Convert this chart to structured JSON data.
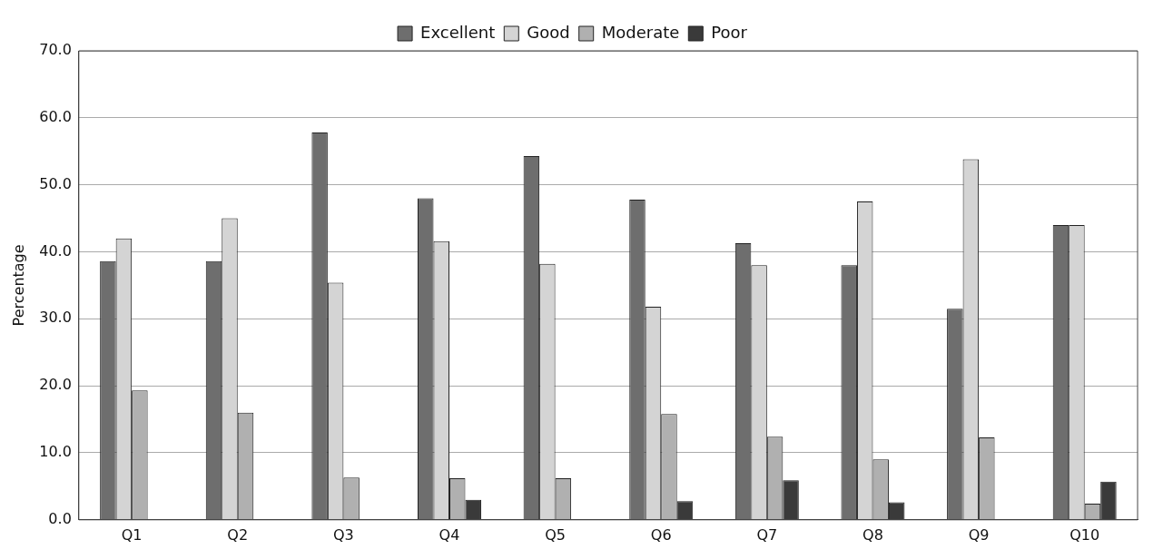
{
  "chart_data": {
    "type": "bar",
    "ylabel": "Percentage",
    "categories": [
      "Q1",
      "Q2",
      "Q3",
      "Q4",
      "Q5",
      "Q6",
      "Q7",
      "Q8",
      "Q9",
      "Q10"
    ],
    "series": [
      {
        "name": "Excellent",
        "color": "#6e6e6e",
        "values": [
          38.6,
          38.6,
          57.8,
          48,
          54.3,
          47.8,
          41.3,
          38,
          31.5,
          44
        ]
      },
      {
        "name": "Good",
        "color": "#d4d4d4",
        "values": [
          42,
          45,
          35.4,
          41.6,
          38.2,
          31.8,
          38,
          47.5,
          53.8,
          44
        ]
      },
      {
        "name": "Moderate",
        "color": "#b0b0b0",
        "values": [
          19.3,
          16,
          6.3,
          6.2,
          6.2,
          15.8,
          12.4,
          9,
          12.3,
          2.4
        ]
      },
      {
        "name": "Poor",
        "color": "#3a3a3a",
        "values": [
          0,
          0,
          0,
          3,
          0,
          2.8,
          5.9,
          2.6,
          0,
          5.7
        ]
      }
    ],
    "ylim": [
      0,
      70
    ],
    "yticks": [
      {
        "value": 0,
        "label": "0.0"
      },
      {
        "value": 10,
        "label": "10.0"
      },
      {
        "value": 20,
        "label": "20.0"
      },
      {
        "value": 30,
        "label": "30.0"
      },
      {
        "value": 40,
        "label": "40.0"
      },
      {
        "value": 50,
        "label": "50.0"
      },
      {
        "value": 60,
        "label": "60.0"
      },
      {
        "value": 70,
        "label": "70.0"
      }
    ],
    "grid": "y",
    "legend": "top"
  }
}
